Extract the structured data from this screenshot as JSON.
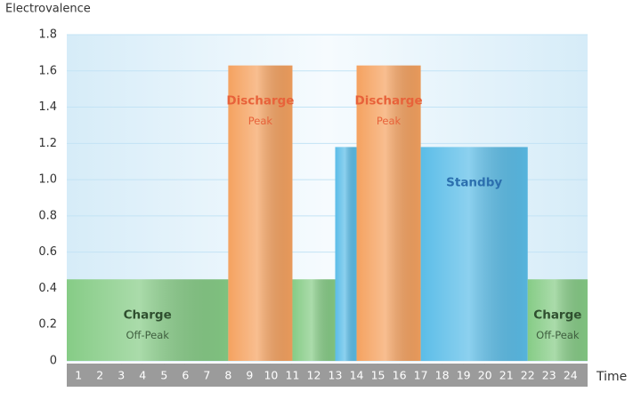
{
  "chart_data": {
    "type": "bar",
    "y_label": "Electrovalence",
    "x_label": "Time",
    "ylim": [
      0,
      1.8
    ],
    "yticks": [
      0,
      0.2,
      0.4,
      0.6,
      0.8,
      {
        "value": 1,
        "label": "1.0"
      },
      1.2,
      1.4,
      1.6,
      1.8
    ],
    "xlim": [
      0.45,
      24.8
    ],
    "xticks": [
      1,
      2,
      3,
      4,
      5,
      6,
      7,
      8,
      9,
      10,
      11,
      12,
      13,
      14,
      15,
      16,
      17,
      18,
      19,
      20,
      21,
      22,
      23,
      24
    ],
    "grid": true,
    "segments": [
      {
        "start": 0.45,
        "end": 8,
        "value": 0.45,
        "color": "#86cc86",
        "name": "Charge",
        "period": "Off-Peak"
      },
      {
        "start": 8,
        "end": 11,
        "value": 1.63,
        "color": "#f5a260",
        "name": "Discharge",
        "period": "Peak"
      },
      {
        "start": 11,
        "end": 13,
        "value": 0.45,
        "color": "#86cc86"
      },
      {
        "start": 13,
        "end": 14,
        "value": 1.18,
        "color": "#5bbde8"
      },
      {
        "start": 14,
        "end": 17,
        "value": 1.63,
        "color": "#f5a260",
        "name": "Discharge",
        "period": "Peak"
      },
      {
        "start": 17,
        "end": 22,
        "value": 1.18,
        "color": "#5bbde8",
        "name": "Standby"
      },
      {
        "start": 22,
        "end": 24.8,
        "value": 0.45,
        "color": "#86cc86",
        "name": "Charge",
        "period": "Off-Peak"
      }
    ]
  }
}
